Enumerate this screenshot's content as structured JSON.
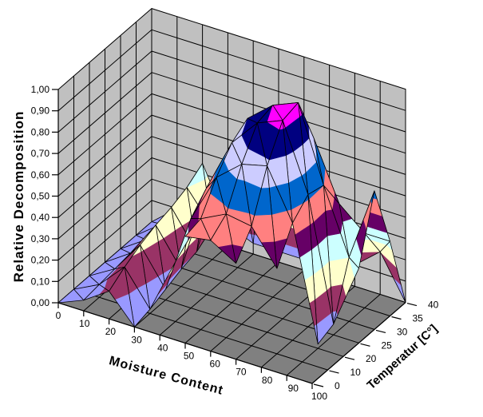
{
  "chart_data": {
    "type": "surface",
    "title": "",
    "x_axis": {
      "label": "Moisture Content",
      "ticks": [
        "0",
        "10",
        "20",
        "30",
        "40",
        "50",
        "60",
        "70",
        "80",
        "90",
        "100"
      ]
    },
    "series_axis": {
      "label": "Temperatur [C°]",
      "ticks": [
        "0",
        "10",
        "20",
        "25",
        "30",
        "35",
        "40"
      ]
    },
    "z_axis": {
      "label": "Relative Decomposition",
      "min": 0,
      "max": 1,
      "step": 0.1,
      "tick_labels": [
        "0,00",
        "0,10",
        "0,20",
        "0,30",
        "0,40",
        "0,50",
        "0,60",
        "0,70",
        "0,80",
        "0,90",
        "1,00"
      ]
    },
    "bands": [
      {
        "min": 0.0,
        "max": 0.1,
        "color": "#9999FF"
      },
      {
        "min": 0.1,
        "max": 0.2,
        "color": "#993366"
      },
      {
        "min": 0.2,
        "max": 0.3,
        "color": "#FFFFCC"
      },
      {
        "min": 0.3,
        "max": 0.4,
        "color": "#CCFFFF"
      },
      {
        "min": 0.4,
        "max": 0.5,
        "color": "#660066"
      },
      {
        "min": 0.5,
        "max": 0.6,
        "color": "#FF8080"
      },
      {
        "min": 0.6,
        "max": 0.7,
        "color": "#0066CC"
      },
      {
        "min": 0.7,
        "max": 0.8,
        "color": "#CCCCFF"
      },
      {
        "min": 0.8,
        "max": 0.9,
        "color": "#000080"
      },
      {
        "min": 0.9,
        "max": 1.0,
        "color": "#FF00FF"
      }
    ],
    "surface_values_by_temperature_row": [
      {
        "temperature": "0",
        "values": [
          0,
          0.05,
          0.13,
          0,
          null,
          0.5,
          0.52,
          0.45,
          null,
          null,
          null
        ]
      },
      {
        "temperature": "10",
        "values": [
          0,
          0.06,
          0.18,
          0.02,
          0.28,
          0.52,
          0.58,
          0.56,
          0.4,
          null,
          null
        ]
      },
      {
        "temperature": "20",
        "values": [
          0,
          0.07,
          0.22,
          0.05,
          0.42,
          0.65,
          0.75,
          0.78,
          0.55,
          0.02,
          null
        ]
      },
      {
        "temperature": "25",
        "values": [
          0,
          0.08,
          0.25,
          0.08,
          0.5,
          0.75,
          0.88,
          0.93,
          0.62,
          0.05,
          0.35
        ]
      },
      {
        "temperature": "30",
        "values": [
          0,
          0.08,
          0.27,
          0.1,
          0.55,
          0.8,
          0.9,
          0.95,
          0.6,
          0.3,
          0.65
        ]
      },
      {
        "temperature": "35",
        "values": [
          0,
          0.09,
          0.3,
          0.15,
          0.5,
          0.68,
          0.74,
          0.72,
          0.45,
          0.35,
          0.35
        ]
      },
      {
        "temperature": "40",
        "values": [
          0,
          0.1,
          0.35,
          0.1,
          0.05,
          0.05,
          0.05,
          0.08,
          0.1,
          0.2,
          0
        ]
      }
    ],
    "colors": {
      "wall": "#C0C0C0",
      "floor": "#808080",
      "grid_line": "#000000",
      "background": "#FFFFFF"
    }
  }
}
